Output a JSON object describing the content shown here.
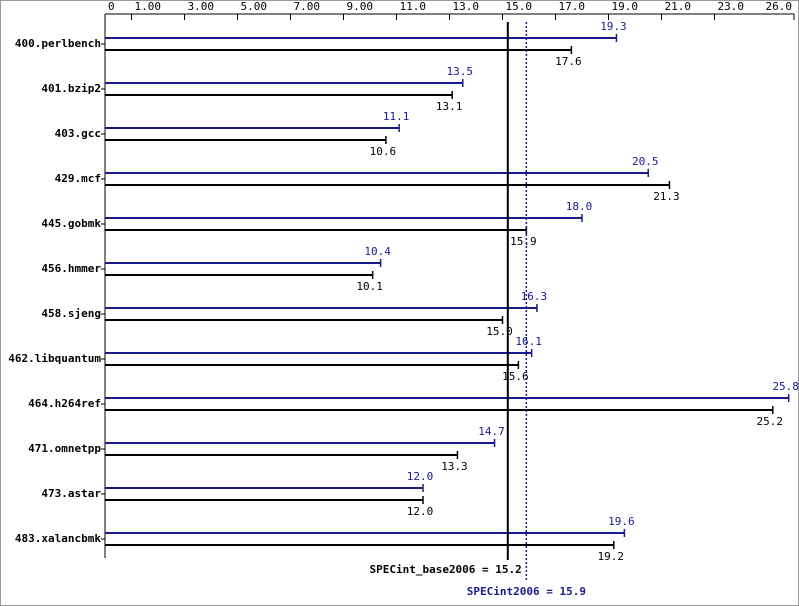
{
  "chart_data": {
    "type": "hbar",
    "categories": [
      "400.perlbench",
      "401.bzip2",
      "403.gcc",
      "429.mcf",
      "445.gobmk",
      "456.hmmer",
      "458.sjeng",
      "462.libquantum",
      "464.h264ref",
      "471.omnetpp",
      "473.astar",
      "483.xalancbmk"
    ],
    "series": [
      {
        "color": "#1a1a8c",
        "values": [
          19.3,
          13.5,
          11.1,
          20.5,
          18.0,
          10.4,
          16.3,
          16.1,
          25.8,
          14.7,
          12.0,
          19.6
        ],
        "value_labels": [
          "19.3",
          "13.5",
          "11.1",
          "20.5",
          "18.0",
          "10.4",
          "16.3",
          "16.1",
          "25.8",
          "14.7",
          "12.0",
          "19.6"
        ]
      },
      {
        "color": "#000000",
        "values": [
          17.6,
          13.1,
          10.6,
          21.3,
          15.9,
          10.1,
          15.0,
          15.6,
          25.2,
          13.3,
          12.0,
          19.2
        ],
        "value_labels": [
          "17.6",
          "13.1",
          "10.6",
          "21.3",
          "15.9",
          "10.1",
          "15.0",
          "15.6",
          "25.2",
          "13.3",
          "12.0",
          "19.2"
        ]
      }
    ],
    "xlim": [
      0,
      26
    ],
    "xticks": [
      0,
      {
        "value": 1,
        "label": "1.00"
      },
      {
        "value": 3,
        "label": "3.00"
      },
      {
        "value": 5,
        "label": "5.00"
      },
      {
        "value": 7,
        "label": "7.00"
      },
      {
        "value": 9,
        "label": "9.00"
      },
      {
        "value": 11,
        "label": "11.0"
      },
      {
        "value": 13,
        "label": "13.0"
      },
      {
        "value": 15,
        "label": "15.0"
      },
      {
        "value": 17,
        "label": "17.0"
      },
      {
        "value": 19,
        "label": "19.0"
      },
      {
        "value": 21,
        "label": "21.0"
      },
      {
        "value": 23,
        "label": "23.0"
      },
      {
        "value": 26,
        "label": "26.0"
      }
    ],
    "reference_lines": [
      {
        "label": "SPECint_base2006 = 15.2",
        "value": 15.2,
        "color": "#000000",
        "style": "solid"
      },
      {
        "label": "SPECint2006 = 15.9",
        "value": 15.9,
        "color": "#1a1a8c",
        "style": "dotted"
      }
    ]
  }
}
